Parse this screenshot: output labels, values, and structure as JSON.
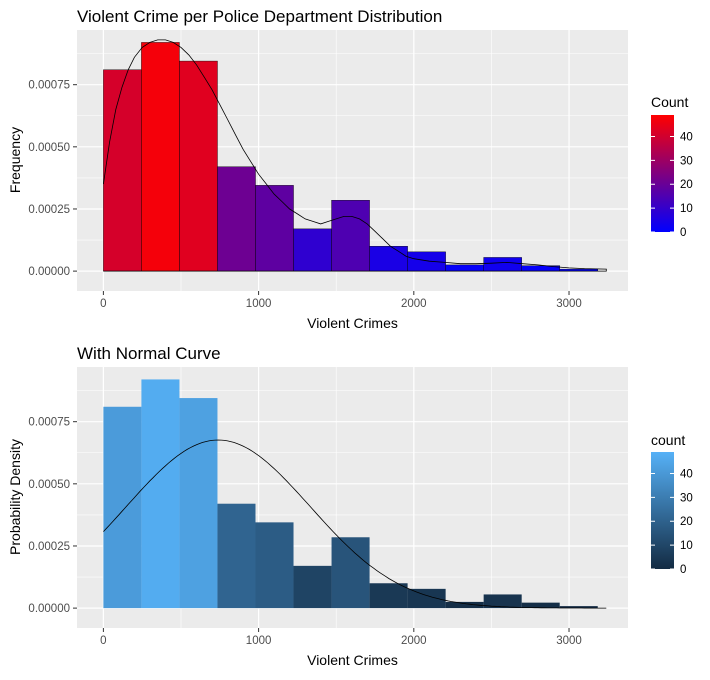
{
  "chart_data": [
    {
      "type": "bar",
      "title": "Violent Crime per Police Department Distribution",
      "xlabel": "Violent Crimes",
      "ylabel": "Frequency",
      "xlim": [
        -170,
        3380
      ],
      "ylim": [
        -8e-05,
        0.00097
      ],
      "x_ticks": [
        0,
        1000,
        2000,
        3000
      ],
      "x_tick_labels": [
        "0",
        "1000",
        "2000",
        "3000"
      ],
      "y_ticks": [
        0,
        0.00025,
        0.0005,
        0.00075
      ],
      "y_tick_labels": [
        "0.00000",
        "0.00025",
        "0.00050",
        "0.00075"
      ],
      "bins": [
        {
          "x0": 0,
          "x1": 245,
          "density": 0.00081,
          "count": 41
        },
        {
          "x0": 245,
          "x1": 490,
          "density": 0.00092,
          "count": 47
        },
        {
          "x0": 490,
          "x1": 735,
          "density": 0.000845,
          "count": 43
        },
        {
          "x0": 735,
          "x1": 980,
          "density": 0.00042,
          "count": 21
        },
        {
          "x0": 980,
          "x1": 1225,
          "density": 0.000345,
          "count": 18
        },
        {
          "x0": 1225,
          "x1": 1470,
          "density": 0.00017,
          "count": 9
        },
        {
          "x0": 1470,
          "x1": 1715,
          "density": 0.000285,
          "count": 15
        },
        {
          "x0": 1715,
          "x1": 1960,
          "density": 0.0001,
          "count": 5
        },
        {
          "x0": 1960,
          "x1": 2205,
          "density": 7.75e-05,
          "count": 4
        },
        {
          "x0": 2205,
          "x1": 2450,
          "density": 2.5e-05,
          "count": 1
        },
        {
          "x0": 2450,
          "x1": 2695,
          "density": 5.5e-05,
          "count": 3
        },
        {
          "x0": 2695,
          "x1": 2940,
          "density": 2.2e-05,
          "count": 1
        },
        {
          "x0": 2940,
          "x1": 3185,
          "density": 8e-06,
          "count": 0
        }
      ],
      "curve": {
        "kind": "kernel-density",
        "x": [
          0,
          40,
          80,
          120,
          160,
          200,
          250,
          300,
          350,
          400,
          450,
          500,
          550,
          600,
          650,
          700,
          750,
          800,
          850,
          900,
          950,
          1000,
          1050,
          1100,
          1150,
          1200,
          1250,
          1300,
          1350,
          1400,
          1450,
          1500,
          1550,
          1600,
          1650,
          1700,
          1750,
          1800,
          1850,
          1900,
          1950,
          2000,
          2100,
          2200,
          2300,
          2400,
          2500,
          2600,
          2700,
          2800,
          2900,
          3000,
          3100,
          3240
        ],
        "y": [
          0.00035,
          0.00052,
          0.00065,
          0.00074,
          0.00081,
          0.00086,
          0.0009,
          0.00092,
          0.00093,
          0.00093,
          0.00092,
          0.0009,
          0.00087,
          0.00083,
          0.00078,
          0.00073,
          0.00067,
          0.00061,
          0.00055,
          0.00049,
          0.00044,
          0.00039,
          0.00035,
          0.00031,
          0.00028,
          0.00025,
          0.00023,
          0.00021,
          0.0002,
          0.00019,
          0.0002,
          0.00021,
          0.00022,
          0.00022,
          0.00021,
          0.00019,
          0.00016,
          0.00013,
          0.0001,
          8e-05,
          6e-05,
          5e-05,
          4e-05,
          3.5e-05,
          3e-05,
          3e-05,
          3.2e-05,
          3.5e-05,
          3e-05,
          2.5e-05,
          1.8e-05,
          1.3e-05,
          1e-05,
          8e-06
        ]
      },
      "legend": {
        "title": "Count",
        "range": [
          0,
          49
        ],
        "ticks": [
          0,
          10,
          20,
          30,
          40
        ],
        "tick_labels": [
          "0",
          "10",
          "20",
          "30",
          "40"
        ],
        "colors": [
          "#0000ff",
          "#ff0000"
        ]
      },
      "bar_gradient": [
        "#0000ff",
        "#ff0000"
      ]
    },
    {
      "type": "bar",
      "title": "With Normal Curve",
      "xlabel": "Violent Crimes",
      "ylabel": "Probability Density",
      "xlim": [
        -170,
        3380
      ],
      "ylim": [
        -8e-05,
        0.00097
      ],
      "x_ticks": [
        0,
        1000,
        2000,
        3000
      ],
      "x_tick_labels": [
        "0",
        "1000",
        "2000",
        "3000"
      ],
      "y_ticks": [
        0,
        0.00025,
        0.0005,
        0.00075
      ],
      "y_tick_labels": [
        "0.00000",
        "0.00025",
        "0.00050",
        "0.00075"
      ],
      "bins": [
        {
          "x0": 0,
          "x1": 245,
          "density": 0.00081,
          "count": 41
        },
        {
          "x0": 245,
          "x1": 490,
          "density": 0.00092,
          "count": 47
        },
        {
          "x0": 490,
          "x1": 735,
          "density": 0.000845,
          "count": 43
        },
        {
          "x0": 735,
          "x1": 980,
          "density": 0.00042,
          "count": 21
        },
        {
          "x0": 980,
          "x1": 1225,
          "density": 0.000345,
          "count": 18
        },
        {
          "x0": 1225,
          "x1": 1470,
          "density": 0.00017,
          "count": 9
        },
        {
          "x0": 1470,
          "x1": 1715,
          "density": 0.000285,
          "count": 15
        },
        {
          "x0": 1715,
          "x1": 1960,
          "density": 0.0001,
          "count": 5
        },
        {
          "x0": 1960,
          "x1": 2205,
          "density": 7.75e-05,
          "count": 4
        },
        {
          "x0": 2205,
          "x1": 2450,
          "density": 2.5e-05,
          "count": 1
        },
        {
          "x0": 2450,
          "x1": 2695,
          "density": 5.5e-05,
          "count": 3
        },
        {
          "x0": 2695,
          "x1": 2940,
          "density": 2.2e-05,
          "count": 1
        },
        {
          "x0": 2940,
          "x1": 3185,
          "density": 8e-06,
          "count": 0
        }
      ],
      "curve": {
        "kind": "normal",
        "mean": 740,
        "sd": 590,
        "x_range": [
          0,
          3240
        ]
      },
      "legend": {
        "title": "count",
        "range": [
          0,
          49
        ],
        "ticks": [
          0,
          10,
          20,
          30,
          40
        ],
        "tick_labels": [
          "0",
          "10",
          "20",
          "30",
          "40"
        ],
        "colors": [
          "#132b43",
          "#56b1f7"
        ]
      },
      "bar_gradient": [
        "#132b43",
        "#56b1f7"
      ]
    }
  ]
}
